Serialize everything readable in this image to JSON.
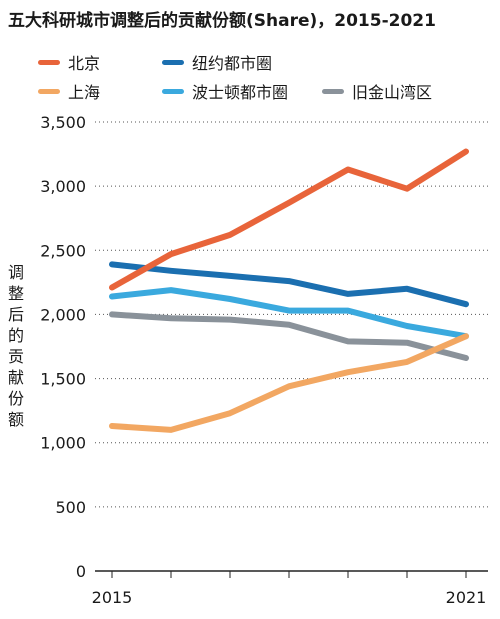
{
  "chart_data": {
    "type": "line",
    "title": "五大科研城市调整后的贡献份额(Share)，2015-2021",
    "ylabel": "调整后的贡献份额",
    "xlabel": "",
    "x": [
      2015,
      2016,
      2017,
      2018,
      2019,
      2020,
      2021
    ],
    "x_tick_labels": [
      "2015",
      "2021"
    ],
    "ylim": [
      0,
      3500
    ],
    "yticks": [
      0,
      500,
      1000,
      1500,
      2000,
      2500,
      3000,
      3500
    ],
    "ytick_labels": [
      "0",
      "500",
      "1,000",
      "1,500",
      "2,000",
      "2,500",
      "3,000",
      "3,500"
    ],
    "grid": "horizontal-dotted",
    "legend_position": "top",
    "series": [
      {
        "name": "北京",
        "color": "#e8643a",
        "values": [
          2210,
          2470,
          2620,
          2870,
          3130,
          2980,
          3270
        ]
      },
      {
        "name": "上海",
        "color": "#f2a762",
        "values": [
          1130,
          1100,
          1230,
          1440,
          1550,
          1630,
          1830
        ]
      },
      {
        "name": "纽约都市圈",
        "color": "#1b6fb0",
        "values": [
          2390,
          2340,
          2300,
          2260,
          2160,
          2200,
          2080
        ]
      },
      {
        "name": "波士顿都市圈",
        "color": "#3aa9de",
        "values": [
          2140,
          2190,
          2120,
          2030,
          2030,
          1910,
          1830
        ]
      },
      {
        "name": "旧金山湾区",
        "color": "#8a929a",
        "values": [
          2000,
          1970,
          1960,
          1920,
          1790,
          1780,
          1660
        ]
      }
    ]
  }
}
